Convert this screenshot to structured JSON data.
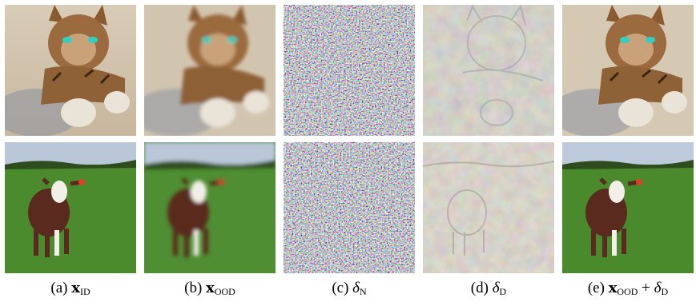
{
  "figure": {
    "columns": [
      {
        "id": "a",
        "label_prefix": "(a)",
        "symbol": "x",
        "symbol_style": "bold",
        "subscript": "ID",
        "suffix": ""
      },
      {
        "id": "b",
        "label_prefix": "(b)",
        "symbol": "x",
        "symbol_style": "bold",
        "subscript": "OOD",
        "suffix": ""
      },
      {
        "id": "c",
        "label_prefix": "(c)",
        "symbol": "δ",
        "symbol_style": "italic",
        "subscript": "N",
        "suffix": ""
      },
      {
        "id": "d",
        "label_prefix": "(d)",
        "symbol": "δ",
        "symbol_style": "italic",
        "subscript": "D",
        "suffix": ""
      },
      {
        "id": "e",
        "label_prefix": "(e)",
        "symbol": "x",
        "symbol_style": "bold",
        "subscript": "OOD",
        "suffix": " + ",
        "symbol2": "δ",
        "subscript2": "D"
      }
    ],
    "rows": [
      {
        "id": "cat",
        "subject": "cat"
      },
      {
        "id": "cow",
        "subject": "cow"
      }
    ],
    "colors": {
      "sand": "#cfc2ad",
      "cat_fur": "#9a6a3c",
      "cat_eye": "#2fd0c0",
      "sky": "#b9c7d8",
      "grass": "#4c8a2e",
      "cow_body": "#5a2a1e",
      "cow_white": "#f2efe9",
      "residual": "#a7a08f"
    }
  }
}
